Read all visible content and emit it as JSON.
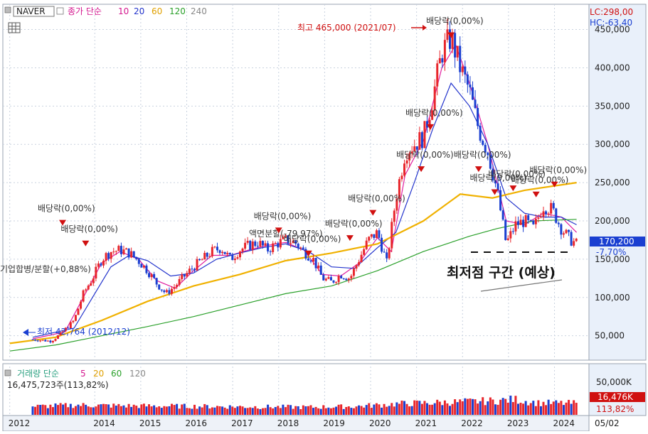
{
  "header": {
    "ticker": "NAVER",
    "ma_label": "종가 단순",
    "ma_periods": [
      "10",
      "20",
      "60",
      "120",
      "240"
    ],
    "lc": "LC:298,00",
    "hc": "HC:-63,40"
  },
  "volume_header": {
    "title": "거래량 단순",
    "ma_periods": [
      "5",
      "20",
      "60",
      "120"
    ],
    "current": "16,475,723주(113,82%)"
  },
  "price_badges": {
    "price": "170,200",
    "change": "-7,70%"
  },
  "volume_badges": {
    "volume": "16,476K",
    "change": "113,82%"
  },
  "volume_axis_label": "50,000K",
  "annotations": {
    "high": "최고 465,000 (2021/07)",
    "low": "최저 42,764 (2012/12)",
    "merger": "기업합병/분할(+0,88%)",
    "split": "액면분할(-79,97%)",
    "dividend": "배당락(0,00%)",
    "bottom_zone": "최저점 구간 (예상)"
  },
  "colors": {
    "up": "#e8262c",
    "down": "#1a3fd1",
    "ma10": "#e01fa0",
    "ma20": "#2233cc",
    "ma60": "#f0b100",
    "ma120": "#2aa02a",
    "ma240": "#8a8a8a",
    "panel_bg": "#e9f0fa"
  },
  "chart_data": [
    {
      "type": "candlestick",
      "title": "NAVER",
      "period": "weekly",
      "x_ticks": [
        "2012",
        "2014",
        "2015",
        "2016",
        "2017",
        "2018",
        "2019",
        "2020",
        "2021",
        "2022",
        "2023",
        "2024",
        "05/02"
      ],
      "y_ticks": [
        50000,
        100000,
        150000,
        200000,
        250000,
        300000,
        350000,
        400000,
        450000
      ],
      "ylim": [
        20000,
        470000
      ],
      "series": [
        {
          "name": "종가",
          "values": [
            [
              2012.5,
              45000
            ],
            [
              2012.9,
              43000
            ],
            [
              2013.1,
              52000
            ],
            [
              2013.4,
              70000
            ],
            [
              2013.6,
              105000
            ],
            [
              2013.8,
              125000
            ],
            [
              2014.0,
              150000
            ],
            [
              2014.2,
              160000
            ],
            [
              2014.4,
              162000
            ],
            [
              2014.6,
              158000
            ],
            [
              2014.8,
              148000
            ],
            [
              2015.0,
              135000
            ],
            [
              2015.2,
              118000
            ],
            [
              2015.4,
              105000
            ],
            [
              2015.6,
              115000
            ],
            [
              2015.8,
              128000
            ],
            [
              2016.0,
              140000
            ],
            [
              2016.2,
              150000
            ],
            [
              2016.4,
              160000
            ],
            [
              2016.6,
              165000
            ],
            [
              2016.8,
              150000
            ],
            [
              2017.0,
              162000
            ],
            [
              2017.2,
              168000
            ],
            [
              2017.4,
              172000
            ],
            [
              2017.6,
              162000
            ],
            [
              2017.8,
              170000
            ],
            [
              2018.0,
              175000
            ],
            [
              2018.2,
              172000
            ],
            [
              2018.4,
              160000
            ],
            [
              2018.6,
              150000
            ],
            [
              2018.8,
              125000
            ],
            [
              2019.0,
              120000
            ],
            [
              2019.2,
              130000
            ],
            [
              2019.4,
              125000
            ],
            [
              2019.6,
              150000
            ],
            [
              2019.8,
              175000
            ],
            [
              2020.0,
              185000
            ],
            [
              2020.2,
              145000
            ],
            [
              2020.4,
              230000
            ],
            [
              2020.6,
              290000
            ],
            [
              2020.8,
              300000
            ],
            [
              2021.0,
              310000
            ],
            [
              2021.2,
              360000
            ],
            [
              2021.4,
              420000
            ],
            [
              2021.6,
              440000
            ],
            [
              2021.8,
              400000
            ],
            [
              2022.0,
              370000
            ],
            [
              2022.2,
              320000
            ],
            [
              2022.4,
              290000
            ],
            [
              2022.6,
              240000
            ],
            [
              2022.8,
              170000
            ],
            [
              2023.0,
              195000
            ],
            [
              2023.2,
              200000
            ],
            [
              2023.4,
              190000
            ],
            [
              2023.6,
              220000
            ],
            [
              2023.8,
              215000
            ],
            [
              2024.0,
              190000
            ],
            [
              2024.2,
              175000
            ],
            [
              2024.33,
              170200
            ]
          ]
        },
        {
          "name": "10",
          "values": [
            [
              2012.5,
              46000
            ],
            [
              2013.2,
              55000
            ],
            [
              2013.6,
              100000
            ],
            [
              2014.0,
              145000
            ],
            [
              2014.4,
              160000
            ],
            [
              2014.8,
              150000
            ],
            [
              2015.2,
              122000
            ],
            [
              2015.6,
              112000
            ],
            [
              2016.0,
              135000
            ],
            [
              2016.4,
              155000
            ],
            [
              2016.8,
              155000
            ],
            [
              2017.2,
              162000
            ],
            [
              2017.6,
              168000
            ],
            [
              2018.0,
              172000
            ],
            [
              2018.4,
              162000
            ],
            [
              2018.8,
              130000
            ],
            [
              2019.2,
              128000
            ],
            [
              2019.6,
              145000
            ],
            [
              2020.0,
              178000
            ],
            [
              2020.3,
              160000
            ],
            [
              2020.6,
              260000
            ],
            [
              2021.0,
              305000
            ],
            [
              2021.4,
              400000
            ],
            [
              2021.7,
              430000
            ],
            [
              2022.0,
              380000
            ],
            [
              2022.4,
              300000
            ],
            [
              2022.8,
              200000
            ],
            [
              2023.2,
              195000
            ],
            [
              2023.6,
              210000
            ],
            [
              2024.0,
              205000
            ],
            [
              2024.33,
              185000
            ]
          ]
        },
        {
          "name": "20",
          "values": [
            [
              2012.5,
              48000
            ],
            [
              2013.4,
              60000
            ],
            [
              2013.8,
              100000
            ],
            [
              2014.2,
              140000
            ],
            [
              2014.6,
              155000
            ],
            [
              2015.0,
              148000
            ],
            [
              2015.5,
              128000
            ],
            [
              2016.0,
              132000
            ],
            [
              2016.5,
              150000
            ],
            [
              2017.0,
              158000
            ],
            [
              2017.5,
              165000
            ],
            [
              2018.0,
              170000
            ],
            [
              2018.5,
              160000
            ],
            [
              2019.0,
              140000
            ],
            [
              2019.5,
              138000
            ],
            [
              2020.0,
              165000
            ],
            [
              2020.4,
              185000
            ],
            [
              2020.8,
              250000
            ],
            [
              2021.2,
              320000
            ],
            [
              2021.6,
              380000
            ],
            [
              2022.0,
              350000
            ],
            [
              2022.4,
              300000
            ],
            [
              2022.8,
              230000
            ],
            [
              2023.2,
              210000
            ],
            [
              2023.6,
              205000
            ],
            [
              2024.0,
              205000
            ],
            [
              2024.33,
              195000
            ]
          ]
        },
        {
          "name": "60",
          "values": [
            [
              2012.0,
              40000
            ],
            [
              2013.0,
              48000
            ],
            [
              2014.0,
              70000
            ],
            [
              2015.0,
              95000
            ],
            [
              2016.0,
              115000
            ],
            [
              2017.0,
              130000
            ],
            [
              2018.0,
              148000
            ],
            [
              2019.0,
              158000
            ],
            [
              2020.0,
              170000
            ],
            [
              2021.0,
              200000
            ],
            [
              2021.8,
              235000
            ],
            [
              2022.5,
              230000
            ],
            [
              2023.2,
              240000
            ],
            [
              2024.33,
              250000
            ]
          ]
        },
        {
          "name": "120",
          "values": [
            [
              2012.0,
              30000
            ],
            [
              2013.0,
              38000
            ],
            [
              2014.0,
              50000
            ],
            [
              2015.0,
              62000
            ],
            [
              2016.0,
              75000
            ],
            [
              2017.0,
              90000
            ],
            [
              2018.0,
              105000
            ],
            [
              2019.0,
              115000
            ],
            [
              2020.0,
              135000
            ],
            [
              2021.0,
              160000
            ],
            [
              2022.0,
              180000
            ],
            [
              2022.6,
              190000
            ],
            [
              2023.4,
              200000
            ],
            [
              2024.33,
              202000
            ]
          ]
        }
      ]
    },
    {
      "type": "bar",
      "title": "거래량",
      "y_ticks": [
        50000
      ],
      "unit": "K",
      "ylim": [
        0,
        50000
      ],
      "series": [
        {
          "name": "거래량",
          "values": [
            [
              2012.5,
              12000
            ],
            [
              2013.5,
              14000
            ],
            [
              2014.5,
              13000
            ],
            [
              2015.5,
              12500
            ],
            [
              2016.5,
              12000
            ],
            [
              2017.5,
              11500
            ],
            [
              2018.5,
              11000
            ],
            [
              2019.5,
              12000
            ],
            [
              2020.5,
              16000
            ],
            [
              2021.5,
              18000
            ],
            [
              2022.5,
              20000
            ],
            [
              2023.0,
              22000
            ],
            [
              2023.5,
              17000
            ],
            [
              2024.33,
              16476
            ]
          ]
        }
      ]
    }
  ]
}
